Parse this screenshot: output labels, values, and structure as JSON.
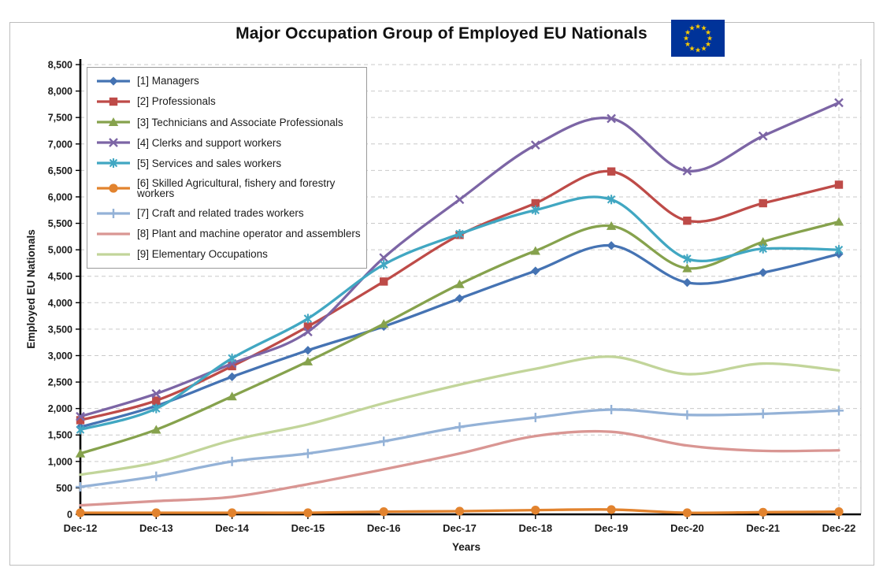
{
  "title": "Major Occupation Group of Employed EU Nationals",
  "flag": {
    "background": "#003399",
    "star_color": "#FFCC00",
    "star_count": 12
  },
  "chart_data": {
    "type": "line",
    "x": [
      "Dec-12",
      "Dec-13",
      "Dec-14",
      "Dec-15",
      "Dec-16",
      "Dec-17",
      "Dec-18",
      "Dec-19",
      "Dec-20",
      "Dec-21",
      "Dec-22"
    ],
    "xlabel": "Years",
    "ylabel": "Employed EU Nationals",
    "ylim": [
      0,
      8500
    ],
    "ytick_step": 500,
    "grid": "horizontal-dashed",
    "legend_position": "top-left-inside",
    "line_style": "smooth",
    "axis_color": "#000000",
    "gridline_color": "#c9c9c9",
    "series": [
      {
        "name": "[1] Managers",
        "color": "#4573B3",
        "marker": "diamond",
        "values": [
          1650,
          2050,
          2600,
          3100,
          3550,
          4080,
          4600,
          5080,
          4380,
          4570,
          4920
        ]
      },
      {
        "name": "[2] Professionals",
        "color": "#BE4B48",
        "marker": "square",
        "values": [
          1780,
          2150,
          2800,
          3550,
          4400,
          5280,
          5880,
          6480,
          5550,
          5880,
          6230
        ]
      },
      {
        "name": "[3] Technicians and Associate Professionals",
        "color": "#86A24D",
        "marker": "triangle",
        "values": [
          1150,
          1600,
          2230,
          2890,
          3600,
          4350,
          4980,
          5450,
          4650,
          5150,
          5530
        ]
      },
      {
        "name": "[4] Clerks and support workers",
        "color": "#7C65A5",
        "marker": "x",
        "values": [
          1850,
          2280,
          2850,
          3450,
          4850,
          5950,
          6980,
          7480,
          6490,
          7150,
          7780
        ]
      },
      {
        "name": "[5] Services and sales workers",
        "color": "#41A7C2",
        "marker": "star",
        "values": [
          1600,
          2000,
          2950,
          3700,
          4720,
          5300,
          5750,
          5950,
          4830,
          5020,
          5000
        ]
      },
      {
        "name": "[6] Skilled Agricultural, fishery and forestry workers",
        "color": "#E2832E",
        "marker": "circle",
        "values": [
          30,
          30,
          30,
          30,
          50,
          60,
          80,
          90,
          30,
          40,
          50
        ]
      },
      {
        "name": "[7] Craft and related trades workers",
        "color": "#94B2D7",
        "marker": "plus",
        "values": [
          520,
          720,
          1000,
          1150,
          1380,
          1650,
          1830,
          1980,
          1880,
          1900,
          1960
        ]
      },
      {
        "name": "[8] Plant and machine operator and assemblers",
        "color": "#D99693",
        "marker": "none",
        "values": [
          170,
          250,
          330,
          570,
          850,
          1150,
          1480,
          1560,
          1300,
          1200,
          1210
        ]
      },
      {
        "name": "[9] Elementary Occupations",
        "color": "#C2D59A",
        "marker": "none",
        "values": [
          750,
          980,
          1400,
          1700,
          2100,
          2450,
          2750,
          2980,
          2650,
          2850,
          2720
        ]
      }
    ]
  }
}
